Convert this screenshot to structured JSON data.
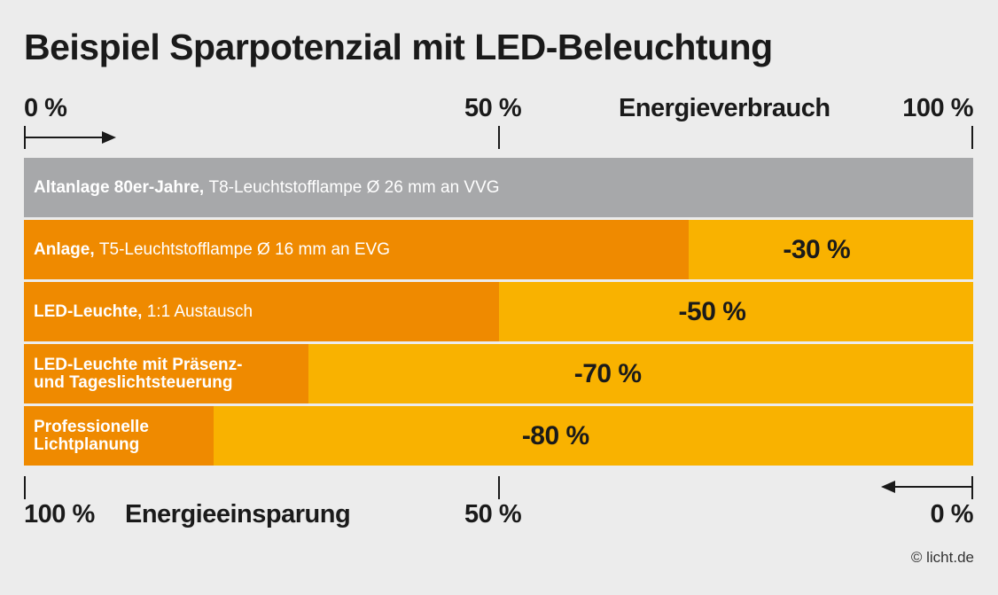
{
  "title": "Beispiel Sparpotenzial mit LED-Beleuchtung",
  "top_axis": {
    "label": "Energieverbrauch",
    "ticks": [
      "0 %",
      "50 %",
      "100 %"
    ],
    "arrow_direction": "right"
  },
  "bottom_axis": {
    "label": "Energieeinsparung",
    "ticks": [
      "100 %",
      "50 %",
      "0 %"
    ],
    "arrow_direction": "left"
  },
  "copyright": "© licht.de",
  "colors": {
    "baseline_grey": "#a7a8aa",
    "consumption_orange": "#ef8a00",
    "savings_yellow": "#f9b200",
    "label_text": "#ffffff",
    "value_text": "#1a1a1a"
  },
  "chart_data": {
    "type": "bar",
    "orientation": "horizontal",
    "stacked": true,
    "title": "Beispiel Sparpotenzial mit LED-Beleuchtung",
    "xlabel_top": "Energieverbrauch",
    "xlabel_bottom": "Energieeinsparung",
    "xlim": [
      0,
      100
    ],
    "unit": "%",
    "categories": [
      {
        "bold": "Altanlage 80er-Jahre,",
        "normal": "T8-Leuchtstofflampe Ø 26 mm an VVG"
      },
      {
        "bold": "Anlage,",
        "normal": "T5-Leuchtstofflampe Ø 16 mm an EVG"
      },
      {
        "bold": "LED-Leuchte,",
        "normal": "1:1 Austausch"
      },
      {
        "bold": "LED-Leuchte mit Präsenz-\nund Tageslichtsteuerung",
        "normal": ""
      },
      {
        "bold": "Professionelle\nLichtplanung",
        "normal": ""
      }
    ],
    "series": [
      {
        "name": "Energieverbrauch",
        "values": [
          100,
          70,
          50,
          30,
          20
        ]
      },
      {
        "name": "Energieeinsparung",
        "values": [
          0,
          30,
          50,
          70,
          80
        ]
      }
    ],
    "data_labels": [
      "",
      "-30 %",
      "-50 %",
      "-70 %",
      "-80 %"
    ],
    "legend": "none",
    "grid": false
  }
}
